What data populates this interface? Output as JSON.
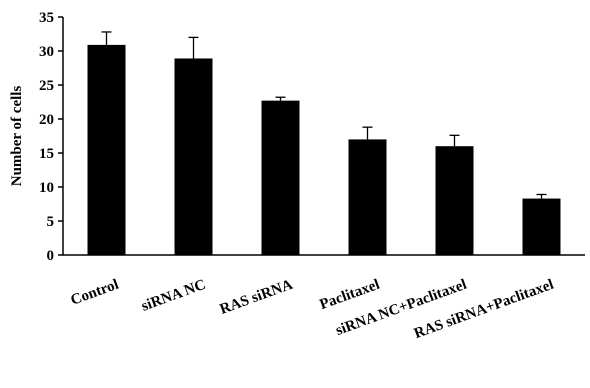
{
  "chart_data": {
    "type": "bar",
    "title": "",
    "xlabel": "",
    "ylabel": "Number of cells",
    "ylim": [
      0,
      35
    ],
    "yticks": [
      0,
      5,
      10,
      15,
      20,
      25,
      30,
      35
    ],
    "grid": false,
    "legend": "none",
    "categories": [
      "Control",
      "siRNA NC",
      "RAS siRNA",
      "Paclitaxel",
      "siRNA NC+Paclitaxel",
      "RAS siRNA+Paclitaxel"
    ],
    "series": [
      {
        "values": [
          30.9,
          28.9,
          22.7,
          17.0,
          16.0,
          8.3
        ],
        "errors": [
          1.9,
          3.1,
          0.5,
          1.8,
          1.6,
          0.6
        ],
        "color": "#000000"
      }
    ]
  }
}
